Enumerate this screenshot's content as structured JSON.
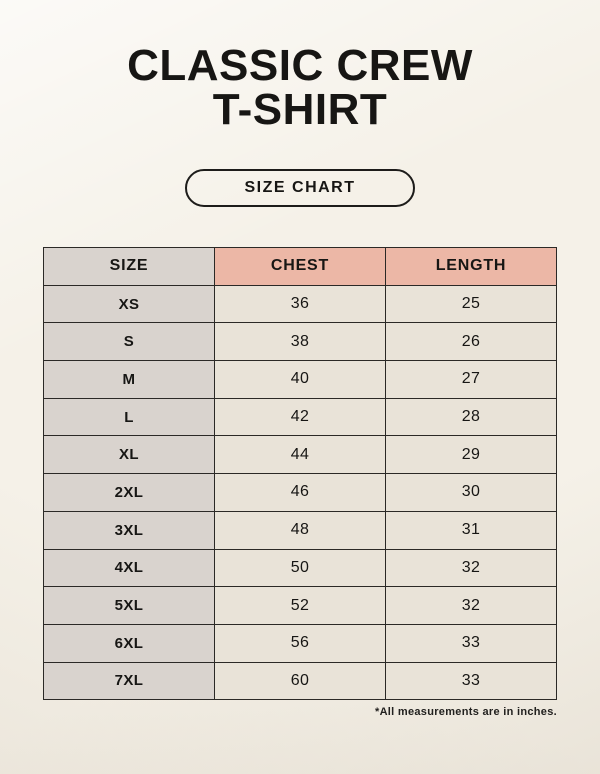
{
  "page": {
    "title_line1": "CLASSIC CREW",
    "title_line2": "T-SHIRT",
    "badge_label": "SIZE CHART",
    "footnote": "*All measurements are in inches."
  },
  "colors": {
    "background": "#f5f1e8",
    "header_accent": "#ecb7a6",
    "size_column": "#d9d3ce",
    "cell": "#e9e3d8",
    "border": "#2b2926",
    "text": "#171614"
  },
  "chart_data": {
    "type": "table",
    "title": "CLASSIC CREW T-SHIRT — SIZE CHART",
    "columns": [
      "SIZE",
      "CHEST",
      "LENGTH"
    ],
    "units": "inches",
    "rows": [
      [
        "XS",
        "36",
        "25"
      ],
      [
        "S",
        "38",
        "26"
      ],
      [
        "M",
        "40",
        "27"
      ],
      [
        "L",
        "42",
        "28"
      ],
      [
        "XL",
        "44",
        "29"
      ],
      [
        "2XL",
        "46",
        "30"
      ],
      [
        "3XL",
        "48",
        "31"
      ],
      [
        "4XL",
        "50",
        "32"
      ],
      [
        "5XL",
        "52",
        "32"
      ],
      [
        "6XL",
        "56",
        "33"
      ],
      [
        "7XL",
        "60",
        "33"
      ]
    ]
  }
}
